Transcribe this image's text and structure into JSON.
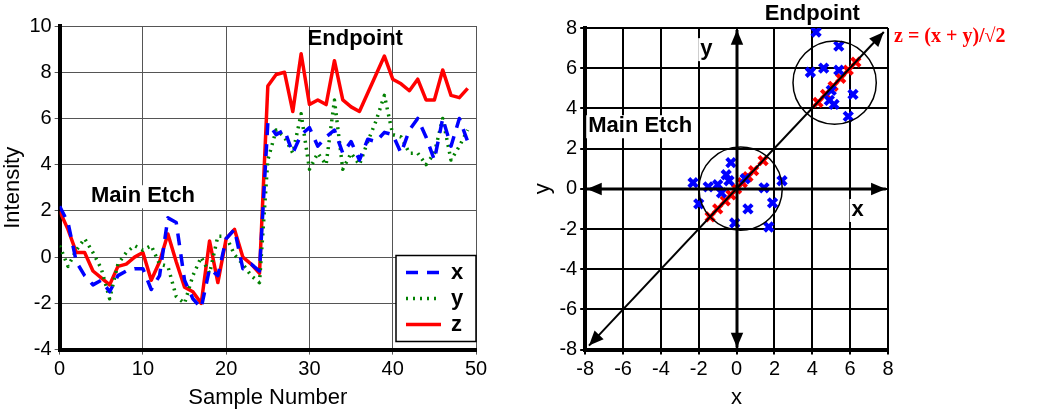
{
  "chart_data": [
    {
      "type": "line",
      "xlabel": "Sample Number",
      "ylabel": "Intensity",
      "x": [
        0,
        1,
        2,
        3,
        4,
        5,
        6,
        7,
        8,
        9,
        10,
        11,
        12,
        13,
        14,
        15,
        16,
        17,
        18,
        19,
        20,
        21,
        22,
        23,
        24,
        25,
        26,
        27,
        28,
        29,
        30,
        31,
        32,
        33,
        34,
        35,
        36,
        37,
        38,
        39,
        40,
        41,
        42,
        43,
        44,
        45,
        46,
        47,
        48,
        49
      ],
      "series": [
        {
          "name": "x",
          "color": "#0000ff",
          "line_style": "dashed",
          "values": [
            2.2,
            1.5,
            -0.2,
            -0.8,
            -1.2,
            -1.0,
            -1.5,
            -0.8,
            -0.6,
            -0.5,
            -0.5,
            -1.4,
            -0.8,
            1.7,
            1.5,
            -1.0,
            -1.8,
            -2.2,
            -0.5,
            -0.8,
            0.8,
            1.2,
            -0.5,
            -0.3,
            -0.6,
            5.8,
            5.3,
            5.5,
            4.5,
            5.3,
            5.6,
            4.8,
            5.2,
            5.5,
            4.5,
            5.0,
            4.2,
            5.1,
            5.0,
            5.4,
            5.3,
            4.5,
            5.5,
            6.0,
            5.2,
            4.2,
            6.0,
            4.8,
            6.0,
            5.0
          ]
        },
        {
          "name": "y",
          "color": "#008000",
          "line_style": "dotted",
          "values": [
            0.5,
            -0.4,
            0.3,
            0.8,
            0.2,
            -0.5,
            -1.8,
            -0.3,
            0.2,
            0.5,
            0.3,
            0.5,
            -0.3,
            -0.4,
            -1.7,
            -2.0,
            -0.8,
            0.0,
            -0.7,
            0.9,
            0.9,
            0.1,
            -0.3,
            -0.8,
            -1.1,
            4.2,
            5.5,
            5.2,
            4.5,
            6.2,
            3.8,
            4.5,
            4.0,
            6.8,
            3.8,
            4.5,
            4.0,
            5.0,
            5.9,
            7.0,
            5.3,
            5.2,
            4.5,
            4.5,
            4.0,
            4.5,
            6.0,
            4.2,
            4.8,
            5.5
          ]
        },
        {
          "name": "z",
          "color": "#ff0000",
          "line_style": "solid",
          "values": [
            2.0,
            1.2,
            0.2,
            0.2,
            -0.6,
            -0.9,
            -1.2,
            -0.4,
            -0.3,
            0.0,
            0.2,
            -1.0,
            -0.2,
            1.0,
            -0.2,
            -1.3,
            -1.5,
            -2.0,
            0.7,
            -1.1,
            0.8,
            1.2,
            0.0,
            -0.3,
            -0.7,
            7.4,
            7.9,
            8.0,
            6.3,
            8.8,
            6.6,
            6.8,
            6.6,
            8.5,
            6.8,
            6.5,
            6.3,
            7.1,
            7.9,
            8.7,
            7.7,
            7.5,
            7.2,
            7.7,
            6.8,
            6.8,
            8.1,
            7.0,
            6.9,
            7.3
          ]
        }
      ],
      "xlim": [
        0,
        50
      ],
      "xticks": [
        0,
        10,
        20,
        30,
        40,
        50
      ],
      "ylim": [
        -4,
        10
      ],
      "yticks": [
        -4,
        -2,
        0,
        2,
        4,
        6,
        8,
        10
      ],
      "grid": true,
      "legend": "bottom right",
      "annotations": [
        "Main Etch",
        "Endpoint"
      ]
    },
    {
      "type": "scatter",
      "xlabel": "x",
      "ylabel": "y",
      "marker": "cross",
      "series": [
        {
          "color": "#0000ff",
          "x": [
            -2.3,
            -2.0,
            -1.5,
            -1.0,
            -0.55,
            -0.3,
            -0.4,
            -0.8,
            -0.1,
            0.6,
            0.45,
            1.45,
            1.7,
            1.9,
            2.4,
            4.2,
            5.4,
            3.9,
            4.6,
            5.4,
            6.15,
            5.9,
            5.15,
            4.9,
            5.0
          ],
          "values": [
            0.3,
            -0.75,
            0.1,
            0.2,
            0.7,
            1.3,
            0.4,
            -0.2,
            -1.7,
            -1.0,
            0.5,
            0.05,
            -1.9,
            -0.7,
            0.4,
            7.8,
            7.1,
            5.8,
            6.0,
            5.9,
            4.7,
            3.6,
            4.2,
            4.4,
            4.9
          ]
        },
        {
          "color": "#ff0000",
          "x": [
            -1.4,
            -1.0,
            -0.6,
            -0.3,
            0.0,
            0.3,
            0.6,
            0.9,
            1.4,
            4.3,
            4.7,
            5.1,
            5.5,
            5.9,
            6.3
          ],
          "values": [
            -1.4,
            -1.0,
            -0.6,
            -0.3,
            0.0,
            0.3,
            0.6,
            0.9,
            1.4,
            4.3,
            4.7,
            5.1,
            5.5,
            5.9,
            6.3
          ]
        }
      ],
      "xlim": [
        -8,
        8
      ],
      "xticks": [
        -8,
        -6,
        -4,
        -2,
        0,
        2,
        4,
        6,
        8
      ],
      "ylim": [
        -8,
        8
      ],
      "yticks": [
        -8,
        -6,
        -4,
        -2,
        0,
        2,
        4,
        6,
        8
      ],
      "grid": true,
      "annotations": [
        "Main Etch",
        "Endpoint",
        "y",
        "x",
        "z = (x + y)/√2"
      ]
    }
  ]
}
